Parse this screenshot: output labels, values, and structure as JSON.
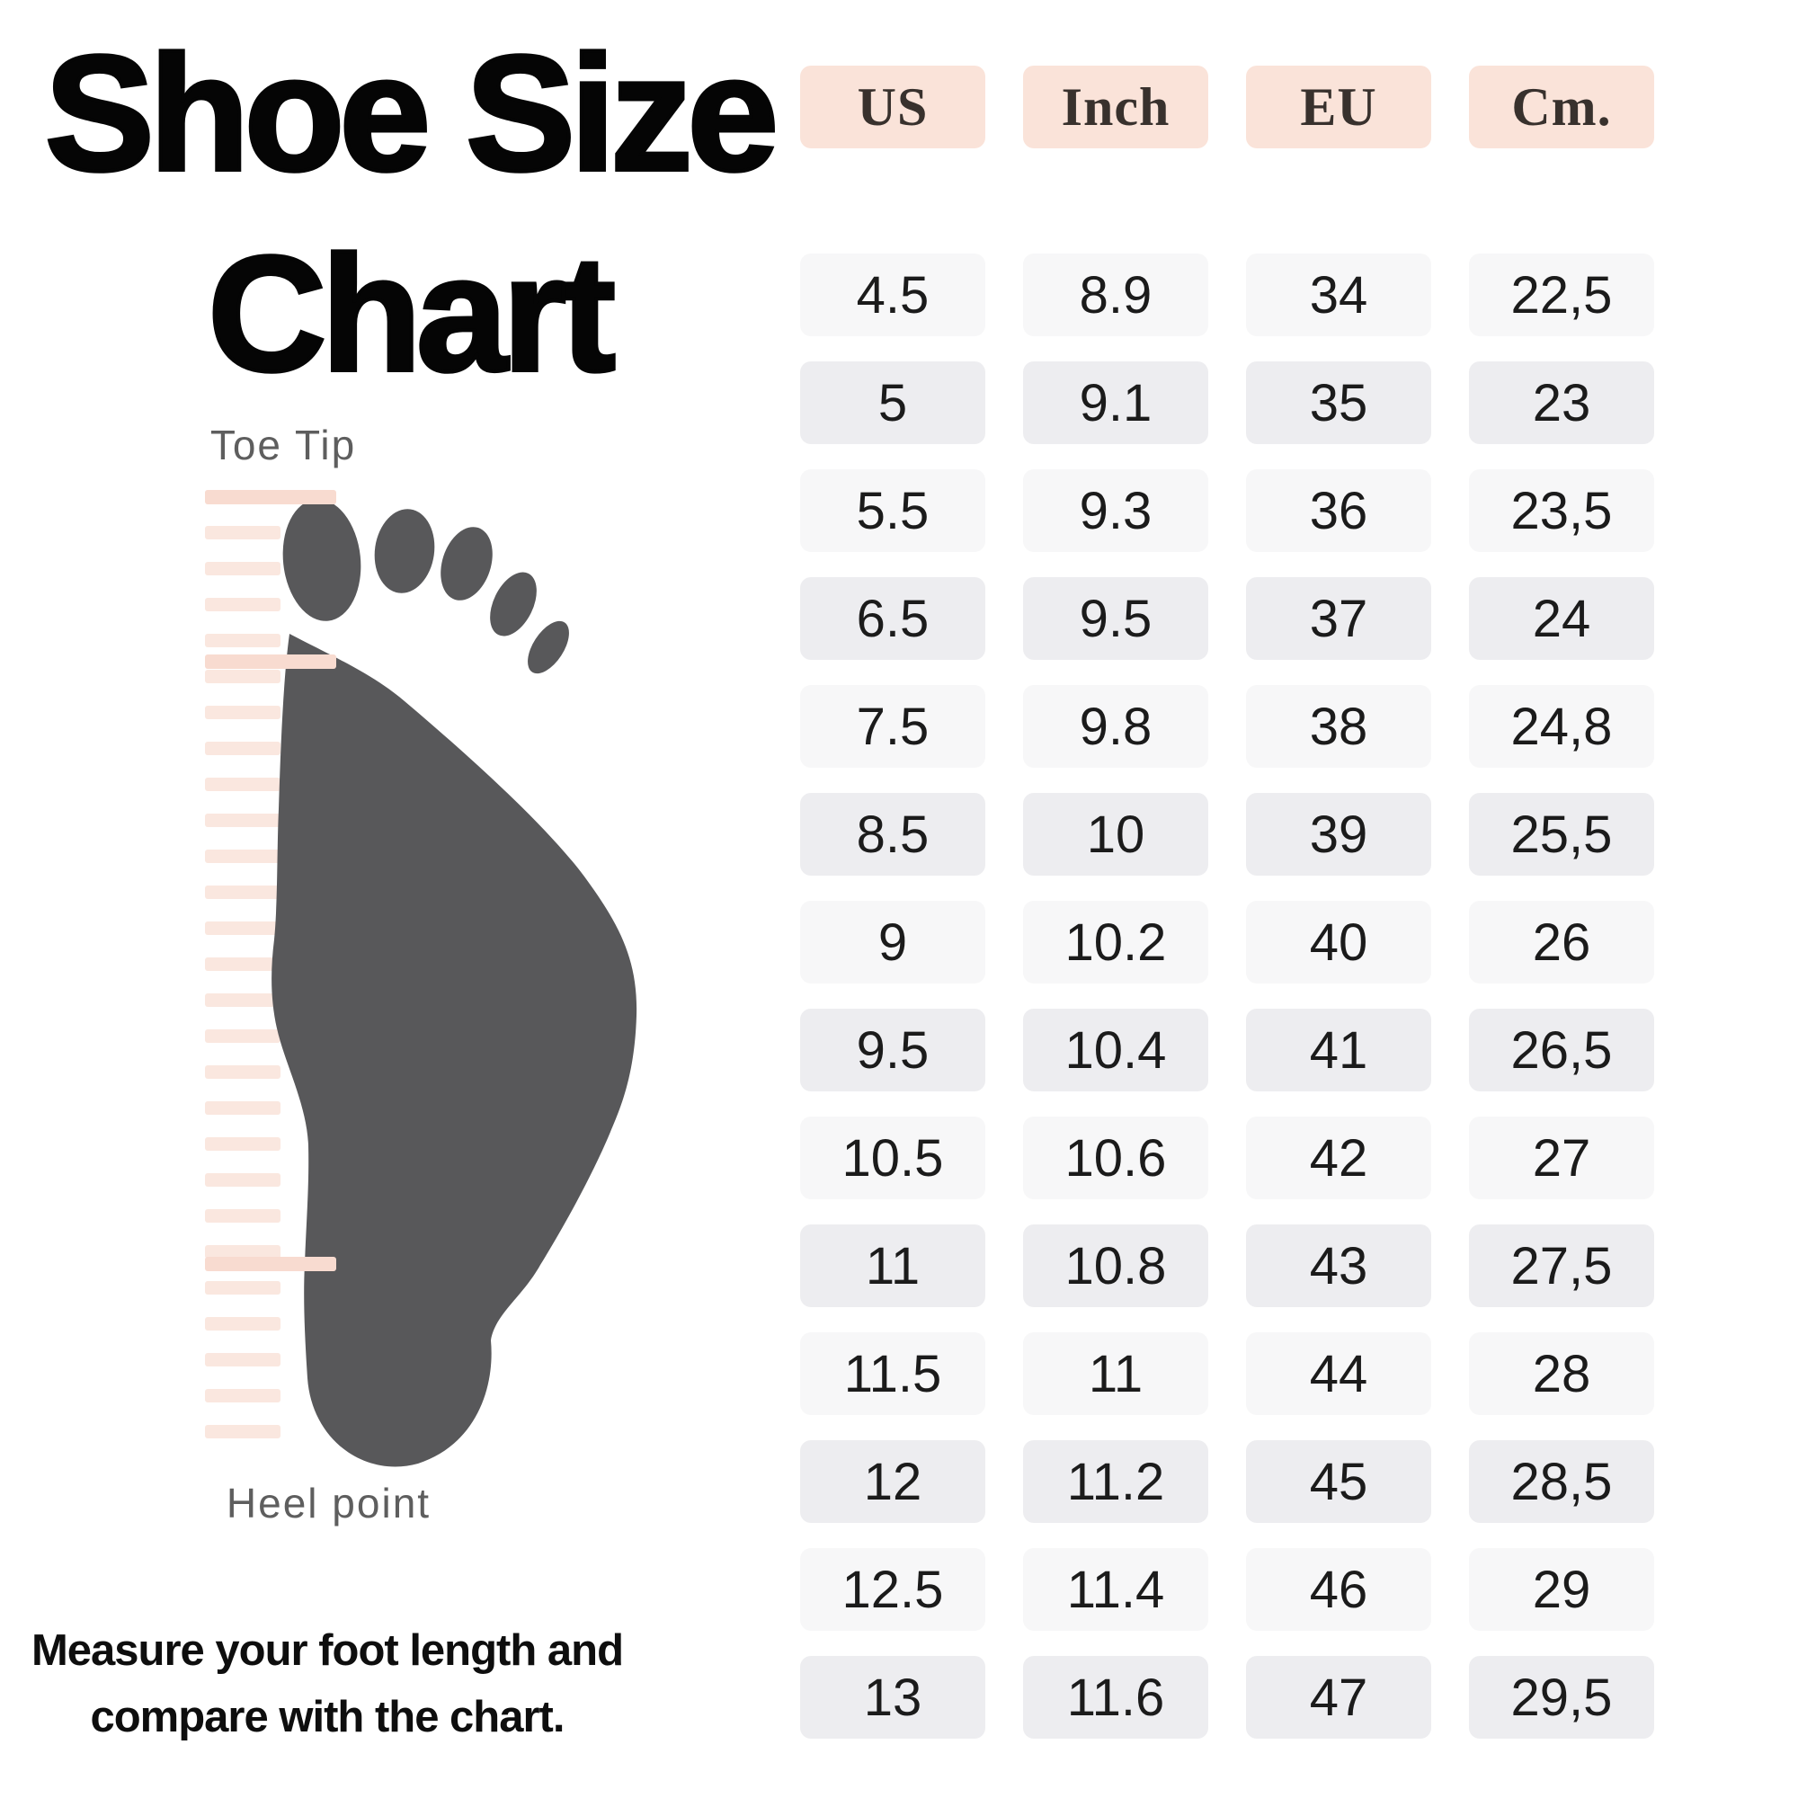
{
  "title": {
    "line1": "Shoe Size",
    "line2": "Chart"
  },
  "figure": {
    "toe_label": "Toe Tip",
    "heel_label": "Heel point",
    "ruler_stripe_count": 27
  },
  "note": {
    "line1": "Measure your foot length and",
    "line2": "compare with the chart."
  },
  "table": {
    "headers": [
      "US",
      "Inch",
      "EU",
      "Cm."
    ],
    "rows": [
      [
        "4.5",
        "8.9",
        "34",
        "22,5"
      ],
      [
        "5",
        "9.1",
        "35",
        "23"
      ],
      [
        "5.5",
        "9.3",
        "36",
        "23,5"
      ],
      [
        "6.5",
        "9.5",
        "37",
        "24"
      ],
      [
        "7.5",
        "9.8",
        "38",
        "24,8"
      ],
      [
        "8.5",
        "10",
        "39",
        "25,5"
      ],
      [
        "9",
        "10.2",
        "40",
        "26"
      ],
      [
        "9.5",
        "10.4",
        "41",
        "26,5"
      ],
      [
        "10.5",
        "10.6",
        "42",
        "27"
      ],
      [
        "11",
        "10.8",
        "43",
        "27,5"
      ],
      [
        "11.5",
        "11",
        "44",
        "28"
      ],
      [
        "12",
        "11.2",
        "45",
        "28,5"
      ],
      [
        "12.5",
        "11.4",
        "46",
        "29"
      ],
      [
        "13",
        "11.6",
        "47",
        "29,5"
      ]
    ]
  },
  "chart_data": {
    "type": "table",
    "title": "Shoe Size Chart",
    "columns": [
      "US",
      "Inch",
      "EU",
      "Cm."
    ],
    "rows": [
      [
        "4.5",
        "8.9",
        "34",
        "22,5"
      ],
      [
        "5",
        "9.1",
        "35",
        "23"
      ],
      [
        "5.5",
        "9.3",
        "36",
        "23,5"
      ],
      [
        "6.5",
        "9.5",
        "37",
        "24"
      ],
      [
        "7.5",
        "9.8",
        "38",
        "24,8"
      ],
      [
        "8.5",
        "10",
        "39",
        "25,5"
      ],
      [
        "9",
        "10.2",
        "40",
        "26"
      ],
      [
        "9.5",
        "10.4",
        "41",
        "26,5"
      ],
      [
        "10.5",
        "10.6",
        "42",
        "27"
      ],
      [
        "11",
        "10.8",
        "43",
        "27,5"
      ],
      [
        "11.5",
        "11",
        "44",
        "28"
      ],
      [
        "12",
        "11.2",
        "45",
        "28,5"
      ],
      [
        "12.5",
        "11.4",
        "46",
        "29"
      ],
      [
        "13",
        "11.6",
        "47",
        "29,5"
      ]
    ],
    "annotations": [
      "Toe Tip",
      "Heel point",
      "Measure your foot length and compare with the chart."
    ]
  },
  "colors": {
    "header_bg": "#fae3d9",
    "row_light": "#f7f7f8",
    "row_dark": "#ededf0",
    "stripe_pink": "#fae7df",
    "mark_pink": "#f8dbd0",
    "foot_gray": "#58585a",
    "title_black": "#050505",
    "label_gray": "#5e5e5e"
  }
}
